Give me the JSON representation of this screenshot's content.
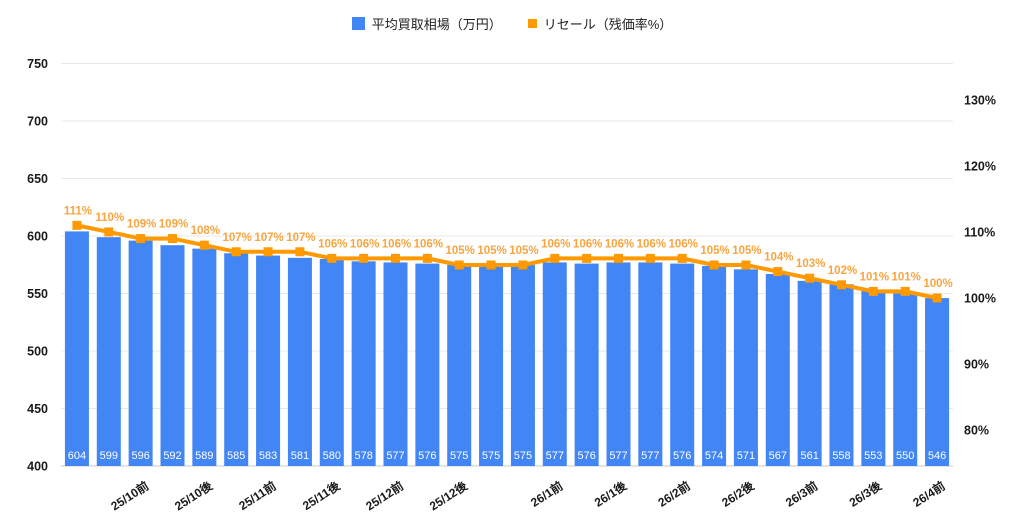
{
  "chart_data": {
    "type": "combo-bar-line",
    "title": "",
    "legend_position": "top",
    "grid": "horizontal",
    "x_axis": {
      "tick_labels": [
        "25/10前",
        "25/10後",
        "25/11前",
        "25/11後",
        "25/12前",
        "25/12後",
        "26/1前",
        "26/1後",
        "26/2前",
        "26/2後",
        "26/3前",
        "26/3後",
        "26/4前"
      ],
      "tick_bar_indices": [
        2,
        4,
        6,
        8,
        10,
        12,
        15,
        17,
        19,
        21,
        23,
        25,
        27
      ]
    },
    "left_axis": {
      "ticks": [
        750,
        700,
        650,
        600,
        550,
        500,
        450,
        400
      ],
      "min": 400,
      "max": 750,
      "label_color": "#1a1a1a"
    },
    "right_axis": {
      "tick_labels": [
        "130%",
        "120%",
        "110%",
        "100%",
        "90%",
        "80%"
      ],
      "tick_values": [
        130,
        120,
        110,
        100,
        90,
        80
      ],
      "min": 74.55,
      "max": 135.52,
      "label_color": "#1a1a1a"
    },
    "series": [
      {
        "name": "平均買取相場（万円）",
        "type": "bar",
        "axis": "left",
        "color": "#4285F4",
        "value_label_color": "#ffffff",
        "values": [
          604,
          599,
          596,
          592,
          589,
          585,
          583,
          581,
          580,
          578,
          577,
          576,
          575,
          575,
          575,
          577,
          576,
          577,
          577,
          576,
          574,
          571,
          567,
          561,
          558,
          553,
          550,
          546
        ]
      },
      {
        "name": "リセール（残価率%）",
        "type": "line",
        "axis": "right",
        "color": "#FF9900",
        "value_label_color": "#F9A43F",
        "values": [
          111,
          110,
          109,
          109,
          108,
          107,
          107,
          107,
          106,
          106,
          106,
          106,
          105,
          105,
          105,
          106,
          106,
          106,
          106,
          106,
          105,
          105,
          104,
          103,
          102,
          101,
          101,
          100
        ],
        "value_label_suffix": "%"
      }
    ],
    "colors": {
      "gridline": "#E8E8E8",
      "axis_line": "#C9C9C9",
      "x_label": "#1a1a1a"
    }
  }
}
